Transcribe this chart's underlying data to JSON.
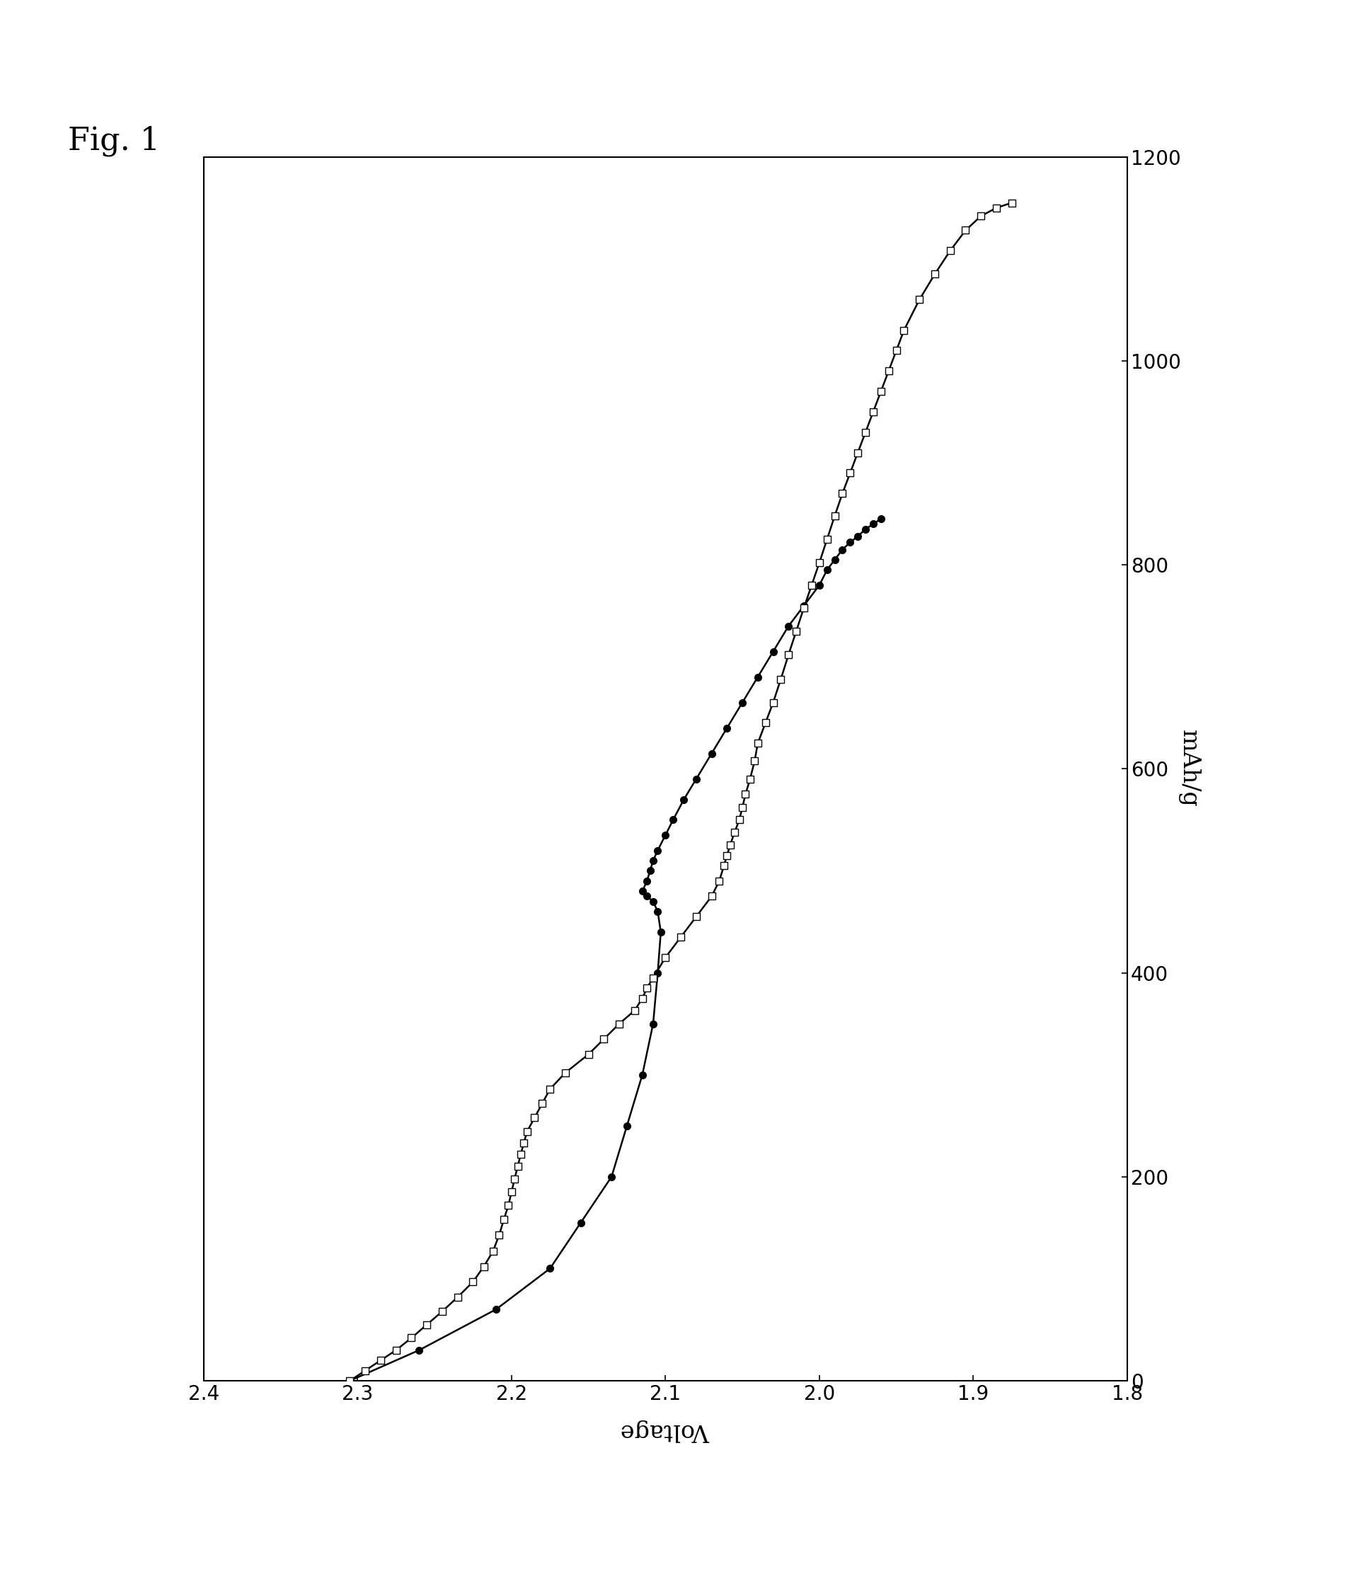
{
  "title": "Fig. 1",
  "x_label": "Voltage",
  "y_label": "mAh/g",
  "xlim": [
    2.4,
    1.8
  ],
  "ylim": [
    0,
    1200
  ],
  "xticks": [
    2.4,
    2.3,
    2.2,
    2.1,
    2.0,
    1.9,
    1.8
  ],
  "yticks": [
    0,
    200,
    400,
    600,
    800,
    1000,
    1200
  ],
  "circle_data": {
    "x": [
      2.305,
      2.26,
      2.21,
      2.175,
      2.155,
      2.135,
      2.125,
      2.115,
      2.108,
      2.105,
      2.103,
      2.105,
      2.108,
      2.112,
      2.115,
      2.112,
      2.11,
      2.108,
      2.105,
      2.1,
      2.095,
      2.088,
      2.08,
      2.07,
      2.06,
      2.05,
      2.04,
      2.03,
      2.02,
      2.01,
      2.0,
      1.995,
      1.99,
      1.985,
      1.98,
      1.975,
      1.97,
      1.965,
      1.96
    ],
    "y": [
      0,
      30,
      70,
      110,
      155,
      200,
      250,
      300,
      350,
      400,
      440,
      460,
      470,
      475,
      480,
      490,
      500,
      510,
      520,
      535,
      550,
      570,
      590,
      615,
      640,
      665,
      690,
      715,
      740,
      760,
      780,
      795,
      805,
      815,
      822,
      828,
      835,
      840,
      845
    ],
    "open_first": true
  },
  "square_data": {
    "x": [
      2.305,
      2.295,
      2.285,
      2.275,
      2.265,
      2.255,
      2.245,
      2.235,
      2.225,
      2.218,
      2.212,
      2.208,
      2.205,
      2.202,
      2.2,
      2.198,
      2.196,
      2.194,
      2.192,
      2.19,
      2.185,
      2.18,
      2.175,
      2.165,
      2.15,
      2.14,
      2.13,
      2.12,
      2.115,
      2.112,
      2.108,
      2.1,
      2.09,
      2.08,
      2.07,
      2.065,
      2.062,
      2.06,
      2.058,
      2.055,
      2.052,
      2.05,
      2.048,
      2.045,
      2.042,
      2.04,
      2.035,
      2.03,
      2.025,
      2.02,
      2.015,
      2.01,
      2.005,
      2.0,
      1.995,
      1.99,
      1.985,
      1.98,
      1.975,
      1.97,
      1.965,
      1.96,
      1.955,
      1.95,
      1.945,
      1.935,
      1.925,
      1.915,
      1.905,
      1.895,
      1.885,
      1.875
    ],
    "y": [
      0,
      10,
      20,
      30,
      42,
      55,
      68,
      82,
      97,
      112,
      127,
      143,
      158,
      172,
      185,
      198,
      210,
      222,
      233,
      244,
      258,
      272,
      286,
      302,
      320,
      335,
      350,
      363,
      375,
      385,
      395,
      415,
      435,
      455,
      475,
      490,
      505,
      515,
      525,
      538,
      550,
      562,
      575,
      590,
      608,
      625,
      645,
      665,
      688,
      712,
      735,
      758,
      780,
      802,
      825,
      848,
      870,
      890,
      910,
      930,
      950,
      970,
      990,
      1010,
      1030,
      1060,
      1085,
      1108,
      1128,
      1142,
      1150,
      1155
    ]
  },
  "background_color": "#ffffff",
  "fig_label_fontsize": 32,
  "axis_label_fontsize": 24,
  "tick_fontsize": 20,
  "line_width": 1.8,
  "marker_size": 7
}
